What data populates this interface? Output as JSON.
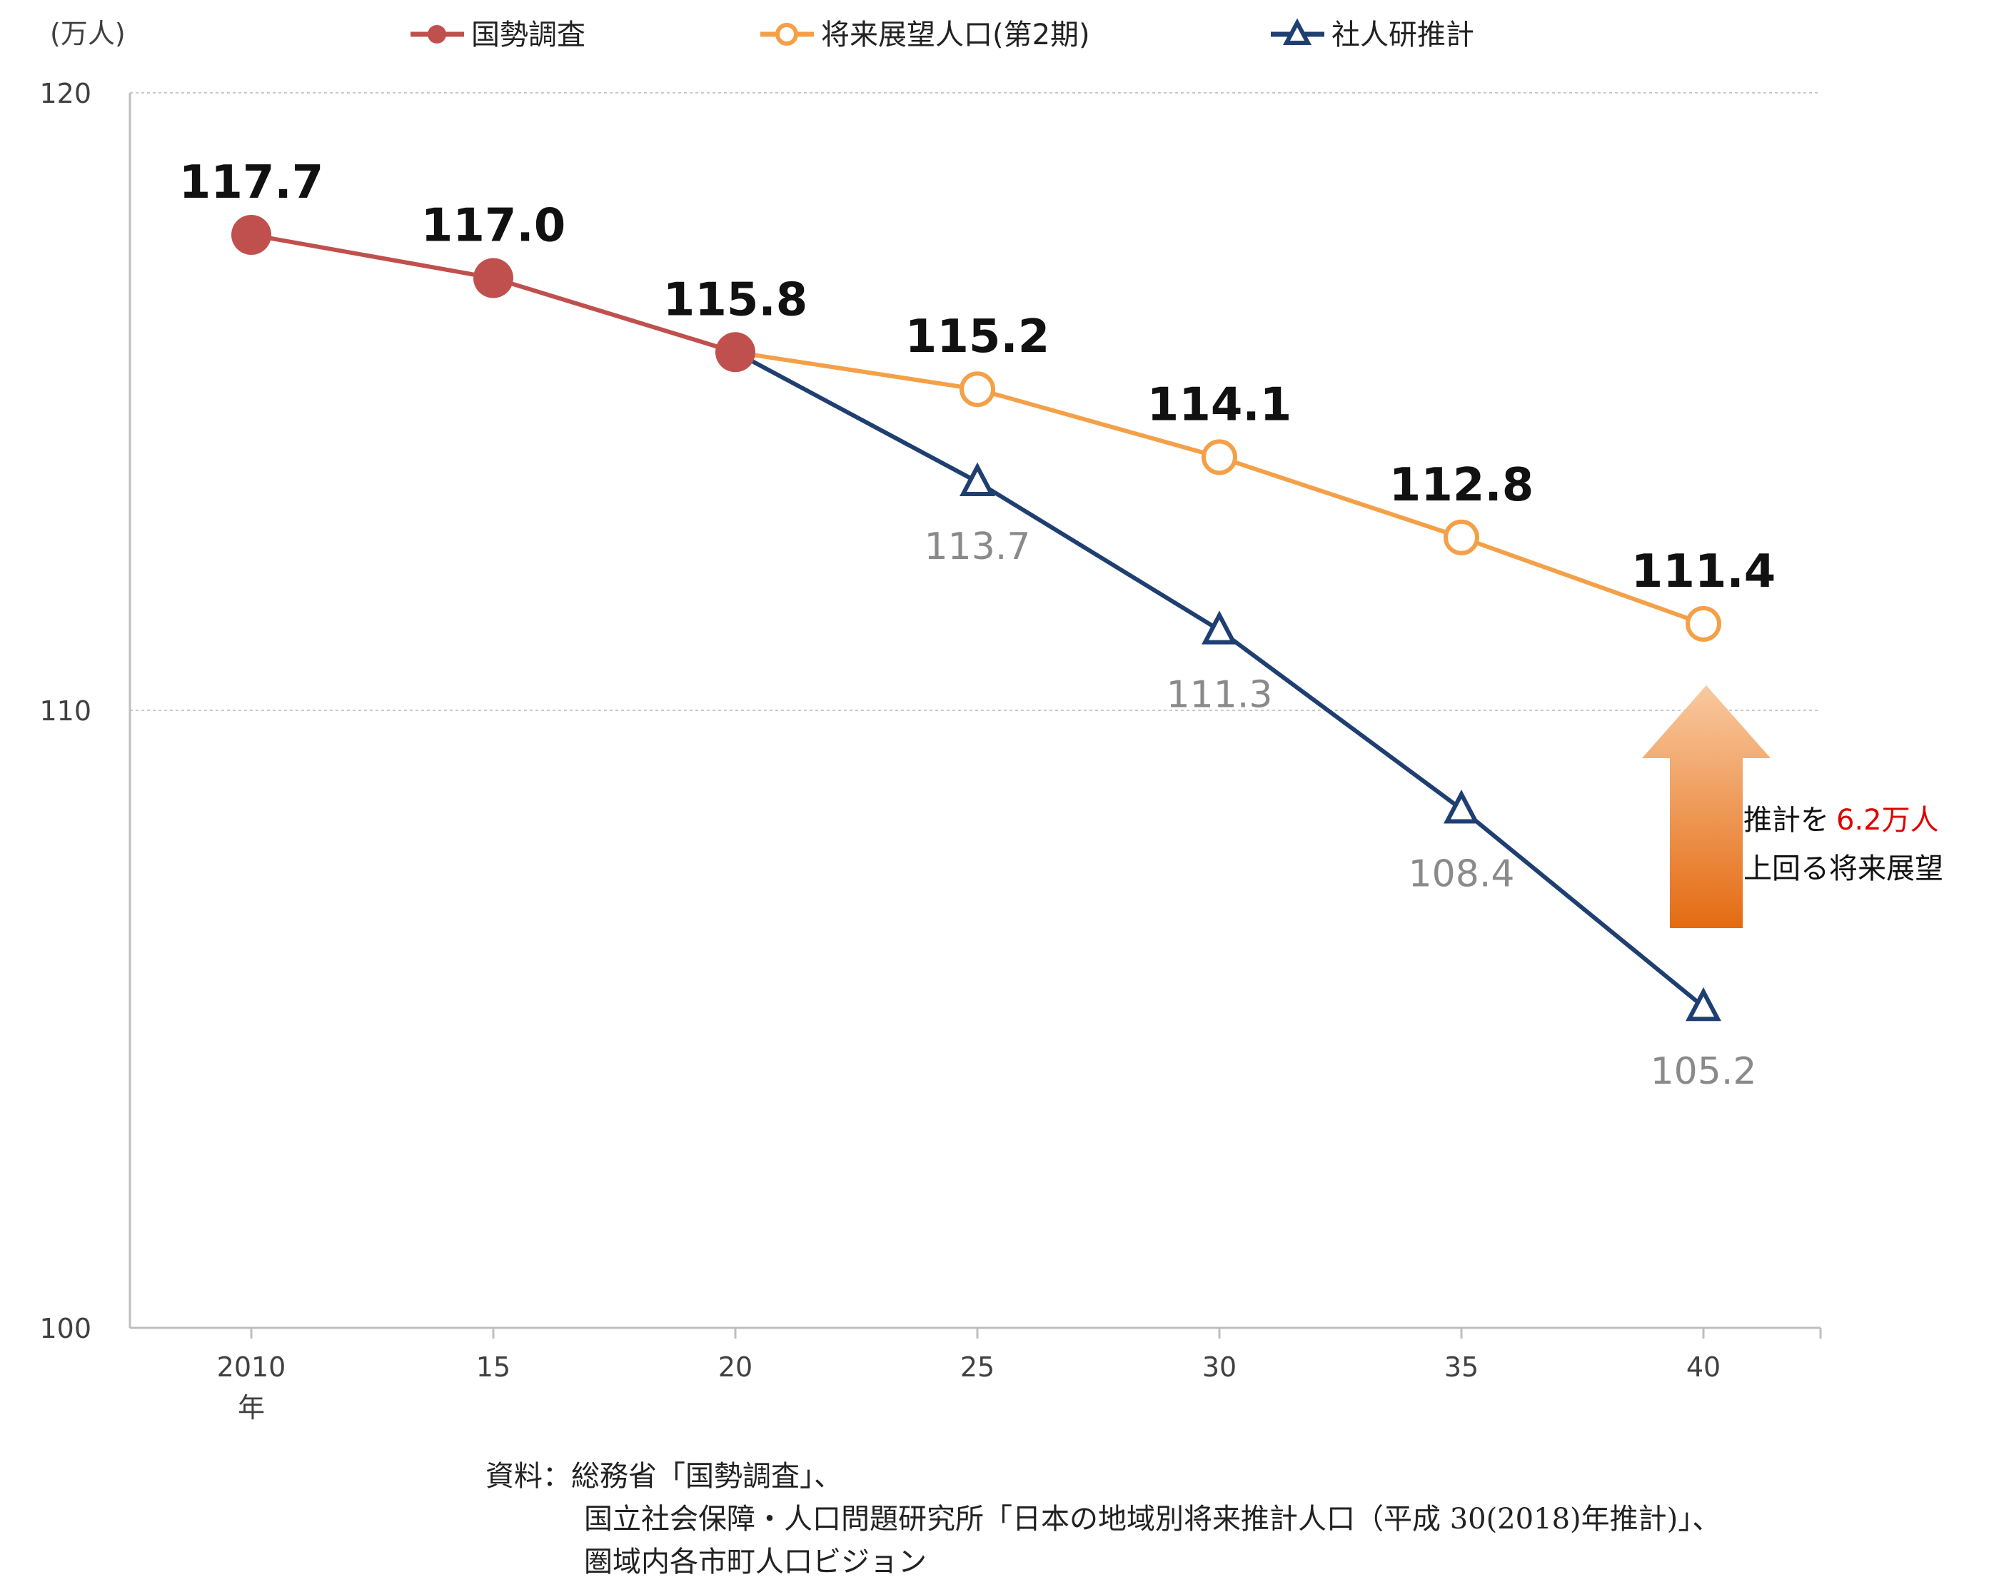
{
  "chart_data": {
    "type": "line",
    "unit": "(万人)",
    "categories": [
      "2010",
      "15",
      "20",
      "25",
      "30",
      "35",
      "40"
    ],
    "x_suffix": "年",
    "ylim": [
      100,
      120
    ],
    "yticks": [
      "100",
      "110",
      "120"
    ],
    "grid": true,
    "legend_position": "top",
    "series": [
      {
        "name": "国勢調査",
        "color": "#c0504d",
        "marker": "filled-circle",
        "values": [
          117.7,
          117.0,
          115.8,
          null,
          null,
          null,
          null
        ],
        "labels": [
          "117.7",
          "117.0",
          "115.8",
          "",
          "",
          "",
          ""
        ]
      },
      {
        "name": "将来展望人口(第2期)",
        "color": "#f4a048",
        "marker": "open-circle",
        "values": [
          null,
          null,
          115.8,
          115.2,
          114.1,
          112.8,
          111.4
        ],
        "labels": [
          "",
          "",
          "",
          "115.2",
          "114.1",
          "112.8",
          "111.4"
        ]
      },
      {
        "name": "社人研推計",
        "color": "#1f3f72",
        "marker": "open-triangle",
        "values": [
          null,
          null,
          115.8,
          113.7,
          111.3,
          108.4,
          105.2
        ],
        "labels": [
          "",
          "",
          "",
          "113.7",
          "111.3",
          "108.4",
          "105.2"
        ]
      }
    ],
    "annotation": {
      "line1_prefix": "推計を",
      "line1_highlight": "6.2万人",
      "line2": "上回る将来展望"
    }
  },
  "source": {
    "line1": "資料：総務省「国勢調査」、",
    "line2": "国立社会保障・人口問題研究所「日本の地域別将来推計人口（平成 30(2018)年推計)」、",
    "line3": "圏域内各市町人口ビジョン"
  }
}
